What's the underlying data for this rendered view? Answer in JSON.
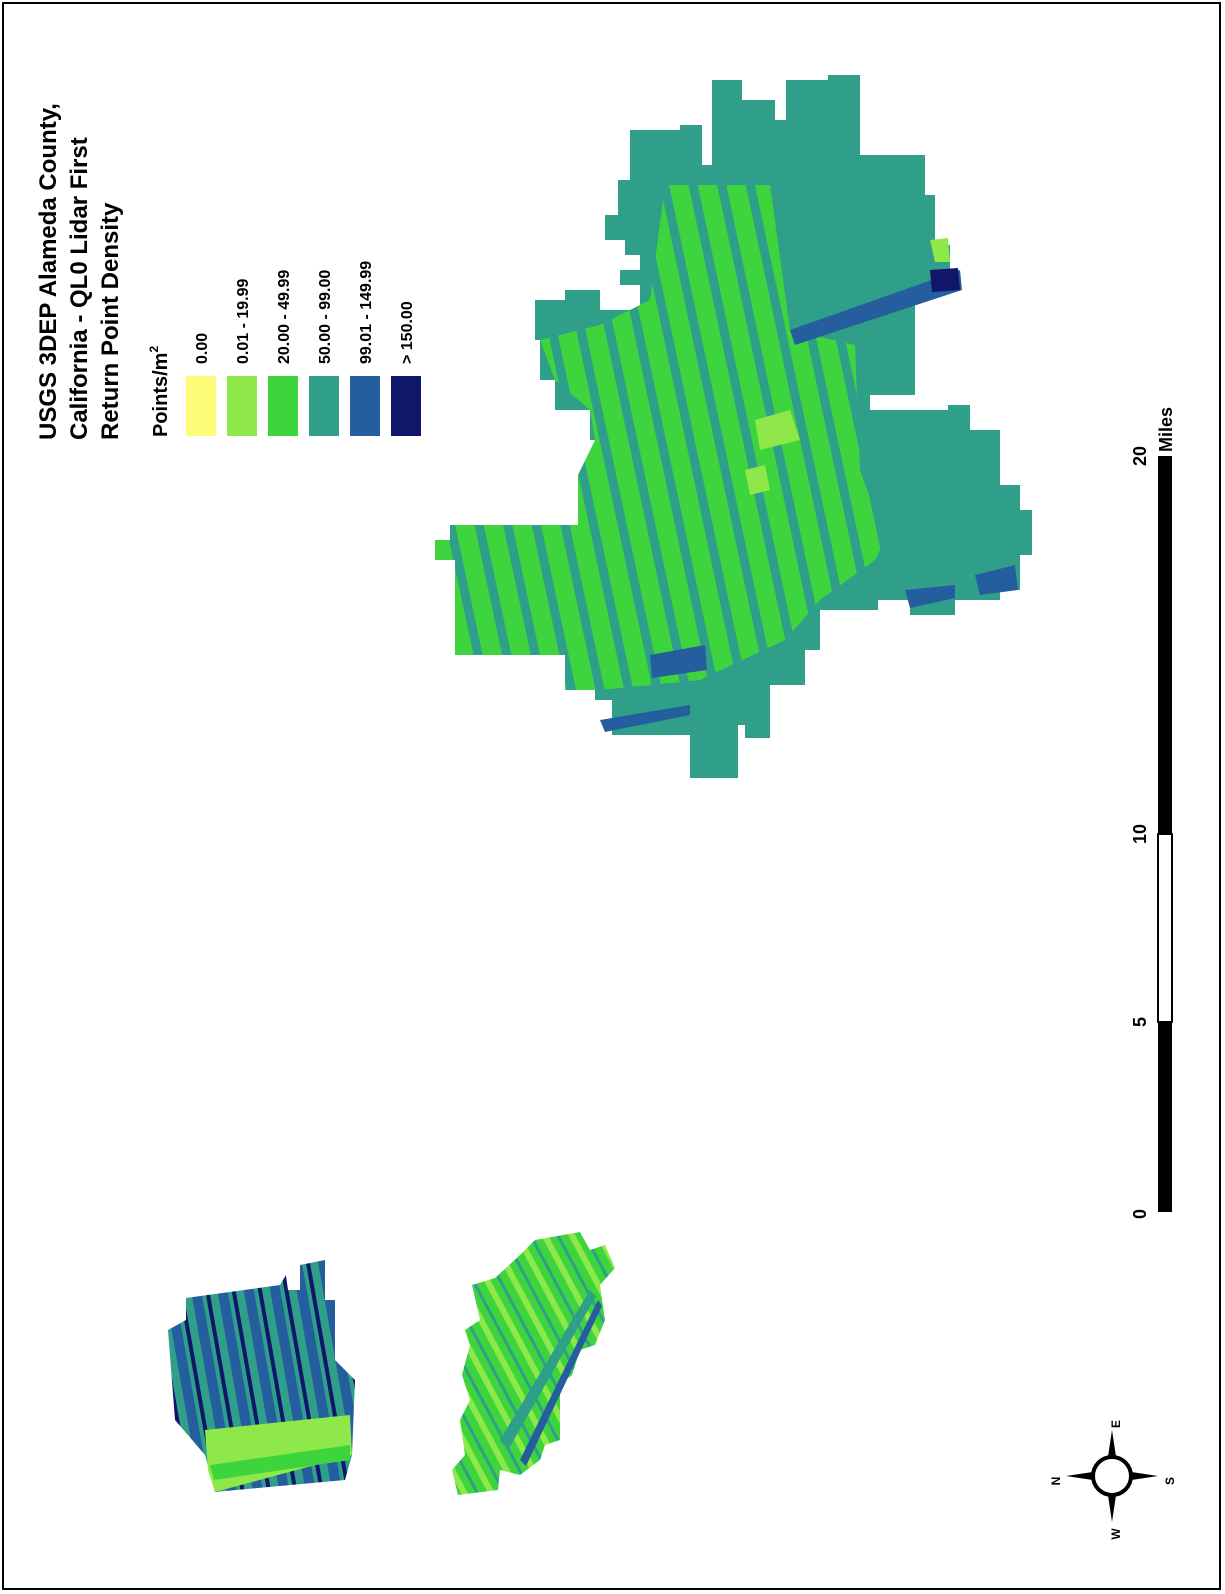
{
  "title": [
    "USGS 3DEP Alameda County,",
    "California - QL0 Lidar First",
    "Return Point Density"
  ],
  "legend": {
    "heading": "Points/m",
    "heading_sup": "2",
    "classes": [
      {
        "label": "0.00",
        "color": "#fdfd7a"
      },
      {
        "label": "0.01 - 19.99",
        "color": "#8ee84a"
      },
      {
        "label": "20.00 - 49.99",
        "color": "#3ed43e"
      },
      {
        "label": "50.00 - 99.00",
        "color": "#2f9f8a"
      },
      {
        "label": "99.01 - 149.99",
        "color": "#245e9e"
      },
      {
        "label": "> 150.00",
        "color": "#10166a"
      }
    ]
  },
  "scale_bar": {
    "unit": "Miles",
    "ticks": [
      "0",
      "5",
      "10",
      "20"
    ]
  },
  "north_arrow": {
    "labels": {
      "n": "N",
      "e": "E",
      "s": "S",
      "w": "W"
    }
  }
}
